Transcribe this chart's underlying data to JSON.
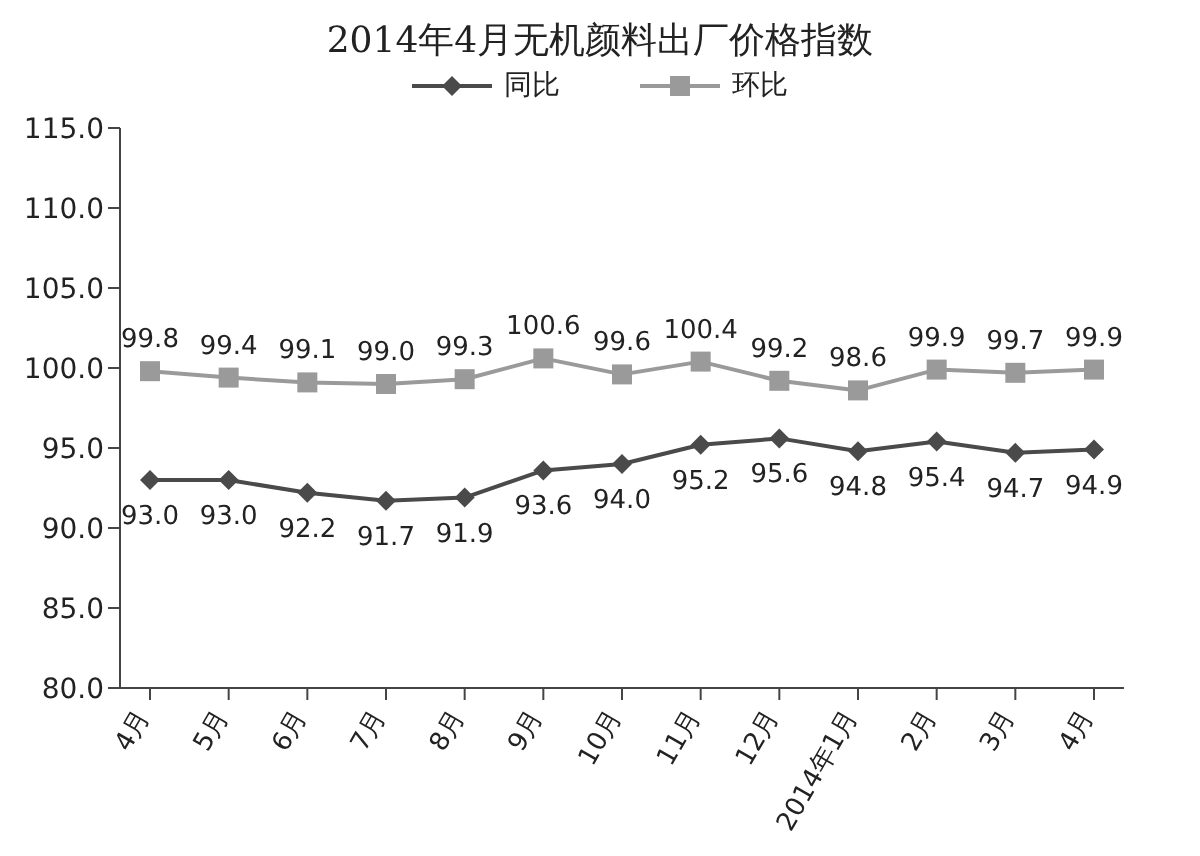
{
  "chart_data": {
    "type": "line",
    "title": "2014年4月无机颜料出厂价格指数",
    "categories": [
      "4月",
      "5月",
      "6月",
      "7月",
      "8月",
      "9月",
      "10月",
      "11月",
      "12月",
      "2014年1月",
      "2月",
      "3月",
      "4月"
    ],
    "series": [
      {
        "name": "同比",
        "color": "#4a4a4a",
        "marker": "diamond",
        "values": [
          93.0,
          93.0,
          92.2,
          91.7,
          91.9,
          93.6,
          94.0,
          95.2,
          95.6,
          94.8,
          95.4,
          94.7,
          94.9
        ],
        "value_labels": [
          "93.0",
          "93.0",
          "92.2",
          "91.7",
          "91.9",
          "93.6",
          "94.0",
          "95.2",
          "95.6",
          "94.8",
          "95.4",
          "94.7",
          "94.9"
        ]
      },
      {
        "name": "环比",
        "color": "#9a9a9a",
        "marker": "square",
        "values": [
          99.8,
          99.4,
          99.1,
          99.0,
          99.3,
          100.6,
          99.6,
          100.4,
          99.2,
          98.6,
          99.9,
          99.7,
          99.9
        ],
        "value_labels": [
          "99.8",
          "99.4",
          "99.1",
          "99.0",
          "99.3",
          "100.6",
          "99.6",
          "100.4",
          "99.2",
          "98.6",
          "99.9",
          "99.7",
          "99.9"
        ]
      }
    ],
    "ylim": [
      80,
      115
    ],
    "yticks": [
      {
        "value": 80,
        "label": "80.0"
      },
      {
        "value": 85,
        "label": "85.0"
      },
      {
        "value": 90,
        "label": "90.0"
      },
      {
        "value": 95,
        "label": "95.0"
      },
      {
        "value": 100,
        "label": "100.0"
      },
      {
        "value": 105,
        "label": "105.0"
      },
      {
        "value": 110,
        "label": "110.0"
      },
      {
        "value": 115,
        "label": "115.0"
      }
    ],
    "grid": false,
    "legend": "top",
    "line_style": "solid"
  }
}
